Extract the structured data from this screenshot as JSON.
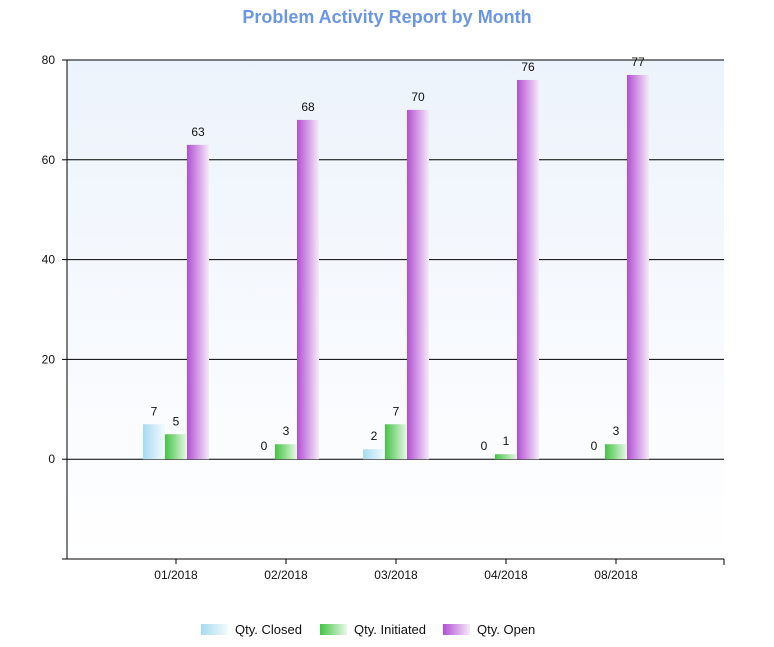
{
  "chart_data": {
    "type": "bar",
    "title": "Problem Activity Report by Month",
    "categories": [
      "01/2018",
      "02/2018",
      "03/2018",
      "04/2018",
      "08/2018"
    ],
    "series": [
      {
        "name": "Qty. Closed",
        "values": [
          7,
          0,
          2,
          0,
          0
        ],
        "color": "#a6dbf0"
      },
      {
        "name": "Qty. Initiated",
        "values": [
          5,
          3,
          7,
          1,
          3
        ],
        "color": "#44c444"
      },
      {
        "name": "Qty. Open",
        "values": [
          63,
          68,
          70,
          76,
          77
        ],
        "color": "#b24fd3"
      }
    ],
    "ylim": [
      -20,
      80
    ],
    "yticks": [
      0,
      20,
      40,
      60,
      80
    ],
    "grid": true,
    "legend": "bottom"
  }
}
